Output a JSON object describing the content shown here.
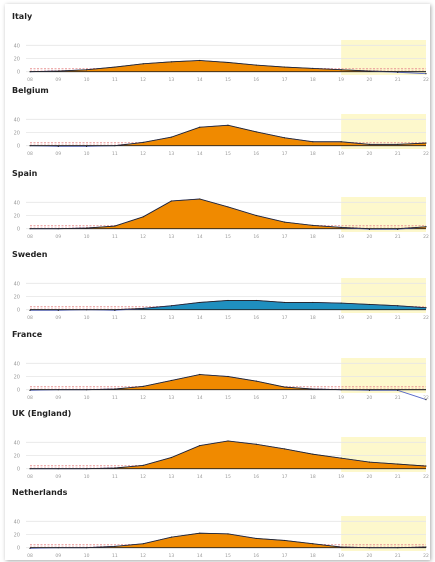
{
  "colors": {
    "orange": "#f08a00",
    "blue": "#1f8fbf",
    "forecast_shade": "#fdf8cc",
    "baseline": "#222222",
    "expected_line": "#5566c8",
    "band": "#e89494",
    "grid": "#e6e6e6",
    "tick_text": "#999999"
  },
  "chart_data": [
    {
      "type": "area",
      "title": "Italy",
      "x": [
        "08",
        "09",
        "10",
        "11",
        "12",
        "13",
        "14",
        "15",
        "16",
        "17",
        "18",
        "19",
        "20",
        "21",
        "22"
      ],
      "yticks": [
        0,
        20,
        40
      ],
      "ylim": [
        -5,
        45
      ],
      "forecast_from": "19",
      "fill_color": "orange",
      "values": [
        0,
        1,
        3,
        7,
        12,
        15,
        17,
        14,
        10,
        7,
        5,
        3,
        1,
        -1,
        -3
      ]
    },
    {
      "type": "area",
      "title": "Belgium",
      "x": [
        "08",
        "09",
        "10",
        "11",
        "12",
        "13",
        "14",
        "15",
        "16",
        "17",
        "18",
        "19",
        "20",
        "21",
        "22"
      ],
      "yticks": [
        0,
        20,
        40
      ],
      "ylim": [
        -5,
        45
      ],
      "forecast_from": "19",
      "fill_color": "orange",
      "values": [
        0,
        -1,
        -1,
        0,
        5,
        13,
        28,
        31,
        21,
        12,
        6,
        6,
        2,
        2,
        4
      ]
    },
    {
      "type": "area",
      "title": "Spain",
      "x": [
        "08",
        "09",
        "10",
        "11",
        "12",
        "13",
        "14",
        "15",
        "16",
        "17",
        "18",
        "19",
        "20",
        "21",
        "22"
      ],
      "yticks": [
        0,
        20,
        40
      ],
      "ylim": [
        -5,
        45
      ],
      "forecast_from": "19",
      "fill_color": "orange",
      "values": [
        0,
        0,
        1,
        4,
        18,
        42,
        45,
        33,
        20,
        10,
        5,
        2,
        -1,
        -1,
        3
      ]
    },
    {
      "type": "area",
      "title": "Sweden",
      "x": [
        "08",
        "09",
        "10",
        "11",
        "12",
        "13",
        "14",
        "15",
        "16",
        "17",
        "18",
        "19",
        "20",
        "21",
        "22"
      ],
      "yticks": [
        0,
        20,
        40
      ],
      "ylim": [
        -5,
        45
      ],
      "forecast_from": "19",
      "fill_color": "blue",
      "values": [
        -1,
        -1,
        0,
        -1,
        2,
        6,
        11,
        14,
        14,
        11,
        11,
        10,
        8,
        6,
        3
      ]
    },
    {
      "type": "area",
      "title": "France",
      "x": [
        "08",
        "09",
        "10",
        "11",
        "12",
        "13",
        "14",
        "15",
        "16",
        "17",
        "18",
        "19",
        "20",
        "21",
        "22"
      ],
      "yticks": [
        0,
        20,
        40
      ],
      "ylim": [
        -5,
        45
      ],
      "forecast_from": "19",
      "fill_color": "orange",
      "values": [
        -1,
        0,
        0,
        1,
        5,
        14,
        23,
        20,
        13,
        4,
        1,
        0,
        -1,
        -1,
        -15
      ]
    },
    {
      "type": "area",
      "title": "UK (England)",
      "x": [
        "08",
        "09",
        "10",
        "11",
        "12",
        "13",
        "14",
        "15",
        "16",
        "17",
        "18",
        "19",
        "20",
        "21",
        "22"
      ],
      "yticks": [
        0,
        20,
        40
      ],
      "ylim": [
        -5,
        45
      ],
      "forecast_from": "19",
      "fill_color": "orange",
      "values": [
        0,
        0,
        0,
        1,
        5,
        17,
        35,
        42,
        37,
        30,
        22,
        16,
        10,
        7,
        4
      ]
    },
    {
      "type": "area",
      "title": "Netherlands",
      "x": [
        "08",
        "09",
        "10",
        "11",
        "12",
        "13",
        "14",
        "15",
        "16",
        "17",
        "18",
        "19",
        "20",
        "21",
        "22"
      ],
      "yticks": [
        0,
        20,
        40
      ],
      "ylim": [
        -5,
        45
      ],
      "forecast_from": "19",
      "fill_color": "orange",
      "values": [
        -1,
        0,
        0,
        2,
        6,
        16,
        22,
        21,
        14,
        11,
        6,
        1,
        0,
        0,
        1
      ]
    }
  ]
}
